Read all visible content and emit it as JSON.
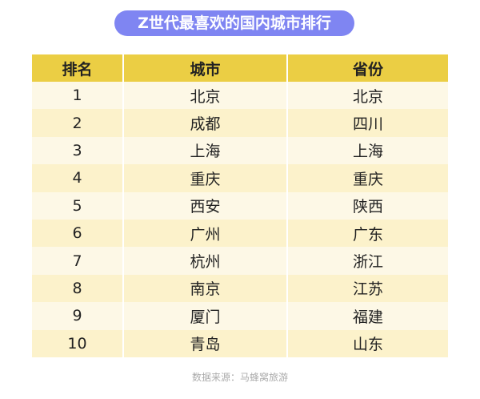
{
  "title": "Z世代最喜欢的国内城市排行",
  "colors": {
    "title_bg": "#7f85f2",
    "header_bg": "#ebce44",
    "row_odd": "#fdf8e6",
    "row_even": "#fcf2cb"
  },
  "chart_data": {
    "type": "table",
    "columns": [
      "排名",
      "城市",
      "省份"
    ],
    "rows": [
      [
        "1",
        "北京",
        "北京"
      ],
      [
        "2",
        "成都",
        "四川"
      ],
      [
        "3",
        "上海",
        "上海"
      ],
      [
        "4",
        "重庆",
        "重庆"
      ],
      [
        "5",
        "西安",
        "陕西"
      ],
      [
        "6",
        "广州",
        "广东"
      ],
      [
        "7",
        "杭州",
        "浙江"
      ],
      [
        "8",
        "南京",
        "江苏"
      ],
      [
        "9",
        "厦门",
        "福建"
      ],
      [
        "10",
        "青岛",
        "山东"
      ]
    ]
  },
  "source": "数据来源：马蜂窝旅游"
}
